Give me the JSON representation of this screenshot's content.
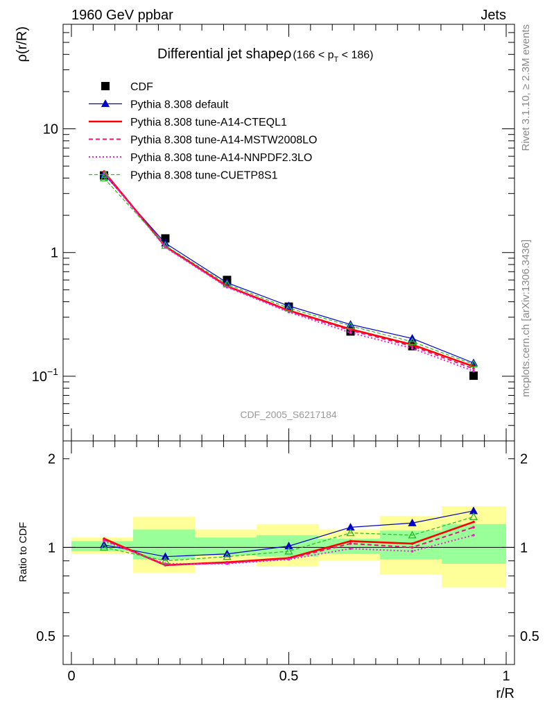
{
  "header": {
    "left": "1960 GeV ppbar",
    "right": "Jets"
  },
  "title": {
    "main": "Differential jet shapeρ",
    "range_open": "(166 < p",
    "range_sub": "T",
    "range_close": " < 186)"
  },
  "side_labels": {
    "rivet": "Rivet 3.1.10, ≥ 2.3M events",
    "mcplots": "mcplots.cern.ch [arXiv:1306.3436]"
  },
  "analysis_tag": "CDF_2005_S6217184",
  "colors": {
    "data": "#000000",
    "default": "#0000cc",
    "cteql1": "#ff0000",
    "mstw": "#ee1177",
    "nnpdf": "#ee22cc",
    "cuetp8s1": "#22bb22",
    "band_outer": "#ffff99",
    "band_inner": "#99ff99"
  },
  "chart_data": [
    {
      "type": "line",
      "panel": "main",
      "ylabel": "ρ(r/R)",
      "yscale": "log",
      "xlim": [
        0,
        1
      ],
      "ylim": [
        0.03,
        70
      ],
      "yticks": [
        {
          "value": 10,
          "label": "10"
        },
        {
          "value": 1,
          "label": "1"
        },
        {
          "value": 0.1,
          "label": "10",
          "sup": "−1"
        }
      ],
      "legend_position": "top-left",
      "series": [
        {
          "name": "CDF",
          "key": "data",
          "style": "marker-square",
          "x": [
            0.075,
            0.216,
            0.358,
            0.5,
            0.642,
            0.784,
            0.925
          ],
          "y": [
            4.2,
            1.3,
            0.6,
            0.365,
            0.23,
            0.175,
            0.101
          ]
        },
        {
          "name": "Pythia 8.308 default",
          "key": "default",
          "style": "solid-triangle",
          "x": [
            0.075,
            0.216,
            0.358,
            0.5,
            0.642,
            0.784,
            0.925
          ],
          "y": [
            4.3,
            1.19,
            0.57,
            0.37,
            0.262,
            0.202,
            0.128
          ]
        },
        {
          "name": "Pythia 8.308 tune-A14-CTEQL1",
          "key": "cteql1",
          "style": "solid-thick",
          "x": [
            0.075,
            0.216,
            0.358,
            0.5,
            0.642,
            0.784,
            0.925
          ],
          "y": [
            4.5,
            1.12,
            0.535,
            0.34,
            0.24,
            0.18,
            0.12
          ]
        },
        {
          "name": "Pythia 8.308 tune-A14-MSTW2008LO",
          "key": "mstw",
          "style": "dashed",
          "x": [
            0.075,
            0.216,
            0.358,
            0.5,
            0.642,
            0.784,
            0.925
          ],
          "y": [
            4.45,
            1.11,
            0.53,
            0.335,
            0.235,
            0.175,
            0.115
          ]
        },
        {
          "name": "Pythia 8.308 tune-A14-NNPDF2.3LO",
          "key": "nnpdf",
          "style": "dotted",
          "x": [
            0.075,
            0.216,
            0.358,
            0.5,
            0.642,
            0.784,
            0.925
          ],
          "y": [
            4.4,
            1.1,
            0.525,
            0.33,
            0.225,
            0.168,
            0.11
          ]
        },
        {
          "name": "Pythia 8.308 tune-CUETP8S1",
          "key": "cuetp8s1",
          "style": "dashed-open-triangle",
          "x": [
            0.075,
            0.216,
            0.358,
            0.5,
            0.642,
            0.784,
            0.925
          ],
          "y": [
            4.0,
            1.14,
            0.555,
            0.355,
            0.255,
            0.19,
            0.125
          ]
        }
      ]
    },
    {
      "type": "line",
      "panel": "ratio",
      "xlabel": "r/R",
      "ylabel": "Ratio to CDF",
      "yscale": "log",
      "xlim": [
        0,
        1
      ],
      "ylim": [
        0.4,
        2.3
      ],
      "xticks": [
        {
          "value": 0,
          "label": "0"
        },
        {
          "value": 0.5,
          "label": "0.5"
        },
        {
          "value": 1,
          "label": "1"
        }
      ],
      "yticks": [
        {
          "value": 2,
          "label": "2"
        },
        {
          "value": 1,
          "label": "1"
        },
        {
          "value": 0.5,
          "label": "0.5"
        }
      ],
      "bands": [
        {
          "x0": 0.0,
          "x1": 0.142,
          "outer": [
            0.95,
            1.08
          ],
          "inner": [
            0.97,
            1.05
          ]
        },
        {
          "x0": 0.142,
          "x1": 0.284,
          "outer": [
            0.82,
            1.27
          ],
          "inner": [
            0.91,
            1.15
          ]
        },
        {
          "x0": 0.284,
          "x1": 0.426,
          "outer": [
            0.89,
            1.15
          ],
          "inner": [
            0.94,
            1.08
          ]
        },
        {
          "x0": 0.426,
          "x1": 0.568,
          "outer": [
            0.86,
            1.2
          ],
          "inner": [
            0.93,
            1.1
          ]
        },
        {
          "x0": 0.568,
          "x1": 0.71,
          "outer": [
            0.9,
            1.15
          ],
          "inner": [
            0.95,
            1.07
          ]
        },
        {
          "x0": 0.71,
          "x1": 0.852,
          "outer": [
            0.81,
            1.28
          ],
          "inner": [
            0.91,
            1.14
          ]
        },
        {
          "x0": 0.852,
          "x1": 1.0,
          "outer": [
            0.73,
            1.38
          ],
          "inner": [
            0.88,
            1.2
          ]
        }
      ],
      "series": [
        {
          "name": "Pythia 8.308 default",
          "key": "default",
          "style": "solid-triangle",
          "x": [
            0.075,
            0.216,
            0.358,
            0.5,
            0.642,
            0.784,
            0.925
          ],
          "y": [
            1.02,
            0.93,
            0.95,
            1.01,
            1.17,
            1.21,
            1.33
          ]
        },
        {
          "name": "Pythia 8.308 tune-A14-CTEQL1",
          "key": "cteql1",
          "style": "solid-thick",
          "x": [
            0.075,
            0.216,
            0.358,
            0.5,
            0.642,
            0.784,
            0.925
          ],
          "y": [
            1.07,
            0.87,
            0.89,
            0.92,
            1.05,
            1.03,
            1.22
          ]
        },
        {
          "name": "Pythia 8.308 tune-A14-MSTW2008LO",
          "key": "mstw",
          "style": "dashed",
          "x": [
            0.075,
            0.216,
            0.358,
            0.5,
            0.642,
            0.784,
            0.925
          ],
          "y": [
            1.06,
            0.87,
            0.885,
            0.915,
            1.03,
            1.0,
            1.17
          ]
        },
        {
          "name": "Pythia 8.308 tune-A14-NNPDF2.3LO",
          "key": "nnpdf",
          "style": "dotted",
          "x": [
            0.075,
            0.216,
            0.358,
            0.5,
            0.642,
            0.784,
            0.925
          ],
          "y": [
            1.05,
            0.88,
            0.88,
            0.91,
            0.99,
            0.97,
            1.1
          ]
        },
        {
          "name": "Pythia 8.308 tune-CUETP8S1",
          "key": "cuetp8s1",
          "style": "dashed-open-triangle",
          "x": [
            0.075,
            0.216,
            0.358,
            0.5,
            0.642,
            0.784,
            0.925
          ],
          "y": [
            1.0,
            0.9,
            0.93,
            0.97,
            1.12,
            1.1,
            1.27
          ]
        }
      ]
    }
  ]
}
